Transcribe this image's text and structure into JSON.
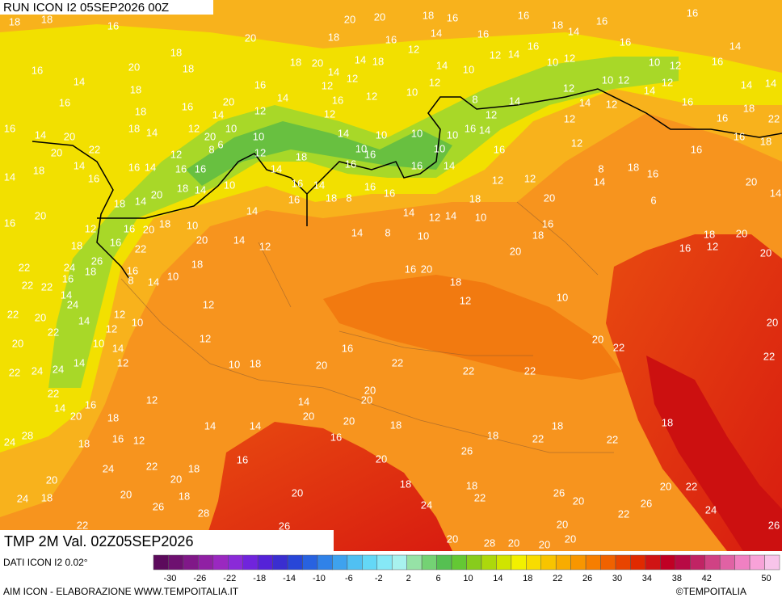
{
  "header": {
    "run": "RUN ICON I2 05SEP2026 00Z",
    "valid": "TMP 2M Val. 02Z05SEP2026"
  },
  "map": {
    "labels": [
      18,
      18,
      16,
      20,
      20,
      18,
      16,
      16,
      18,
      14,
      16,
      16,
      20,
      18,
      16,
      14,
      16,
      12,
      16,
      16,
      14,
      16,
      14,
      20,
      18,
      18,
      18,
      20,
      14,
      14,
      18,
      14,
      10,
      12,
      14,
      10,
      12,
      10,
      12,
      16,
      18,
      16,
      14,
      12,
      12,
      12,
      10,
      12,
      8,
      14,
      12,
      10,
      12,
      14,
      12,
      14,
      14,
      16,
      18,
      16,
      20,
      12,
      14,
      16,
      12,
      12,
      14,
      12,
      16,
      18,
      16,
      14,
      20,
      22,
      20,
      18,
      14,
      12,
      10,
      10,
      14,
      10,
      10,
      10,
      16,
      14,
      12,
      16,
      22,
      20,
      12,
      8,
      6,
      12,
      18,
      10,
      10,
      16,
      12,
      16,
      16,
      18,
      14,
      16,
      14,
      16,
      16,
      10,
      14,
      16,
      16,
      16,
      14,
      12,
      12,
      8,
      18,
      16,
      14,
      14,
      18,
      16,
      18,
      14,
      16,
      14,
      8,
      16,
      16,
      18,
      16,
      18,
      20,
      6,
      20,
      14,
      16,
      20,
      18,
      14,
      20,
      14,
      12,
      14,
      10,
      16,
      12,
      16,
      20,
      18,
      10,
      14,
      14,
      8,
      10,
      18,
      18,
      20,
      18,
      16,
      22,
      20,
      14,
      12,
      16,
      12,
      20,
      22,
      24,
      26,
      18,
      20,
      16,
      20,
      22,
      22,
      16,
      18,
      16,
      8,
      14,
      10,
      18,
      14,
      24,
      12,
      10,
      22,
      20,
      14,
      12,
      10,
      12,
      20,
      20,
      22,
      12,
      10,
      14,
      12,
      16,
      20,
      22,
      22,
      24,
      24,
      14,
      12,
      10,
      18,
      20,
      22,
      22,
      22,
      22,
      22,
      14,
      16,
      12,
      14,
      20,
      20,
      20,
      18,
      14,
      14,
      20,
      20,
      18,
      18,
      18,
      24,
      28,
      18,
      16,
      12,
      16,
      18,
      22,
      22,
      24,
      22,
      18,
      16,
      20,
      26,
      20,
      20,
      18,
      18,
      24,
      18,
      20,
      18,
      20,
      22,
      26,
      20,
      20,
      22,
      26,
      28,
      24,
      26,
      22,
      24,
      22,
      26,
      20,
      26,
      20,
      28,
      20,
      20,
      20,
      20,
      20
    ],
    "legend": {
      "source": "DATI ICON I2 0.02°",
      "ticks": [
        -30,
        -26,
        -22,
        -18,
        -14,
        -10,
        -6,
        -2,
        2,
        6,
        10,
        14,
        18,
        22,
        26,
        30,
        34,
        38,
        42,
        50
      ],
      "colors": [
        "#5c0a5c",
        "#6e1070",
        "#801888",
        "#9020a4",
        "#9a28c0",
        "#8a2ad8",
        "#7024dc",
        "#5522d8",
        "#3a2ed0",
        "#2846d8",
        "#2862e0",
        "#3082e8",
        "#3ea2ee",
        "#50c0f2",
        "#64d8f6",
        "#86e8f6",
        "#a8f2ee",
        "#96e2a6",
        "#74d274",
        "#56c052",
        "#64c834",
        "#88cc1c",
        "#acd80c",
        "#d0e400",
        "#f2f000",
        "#f8dc00",
        "#f8c400",
        "#f8ac00",
        "#f89600",
        "#f67e00",
        "#f06200",
        "#e84400",
        "#e02a00",
        "#d01414",
        "#c00024",
        "#b80a44",
        "#c02464",
        "#d04284",
        "#e062a4",
        "#f080c2",
        "#f8a2d8",
        "#f8c4ea"
      ]
    },
    "footer": {
      "credit": "AIM ICON - ELABORAZIONE WWW.TEMPOITALIA.IT",
      "copyright": "©TEMPOITALIA"
    }
  }
}
